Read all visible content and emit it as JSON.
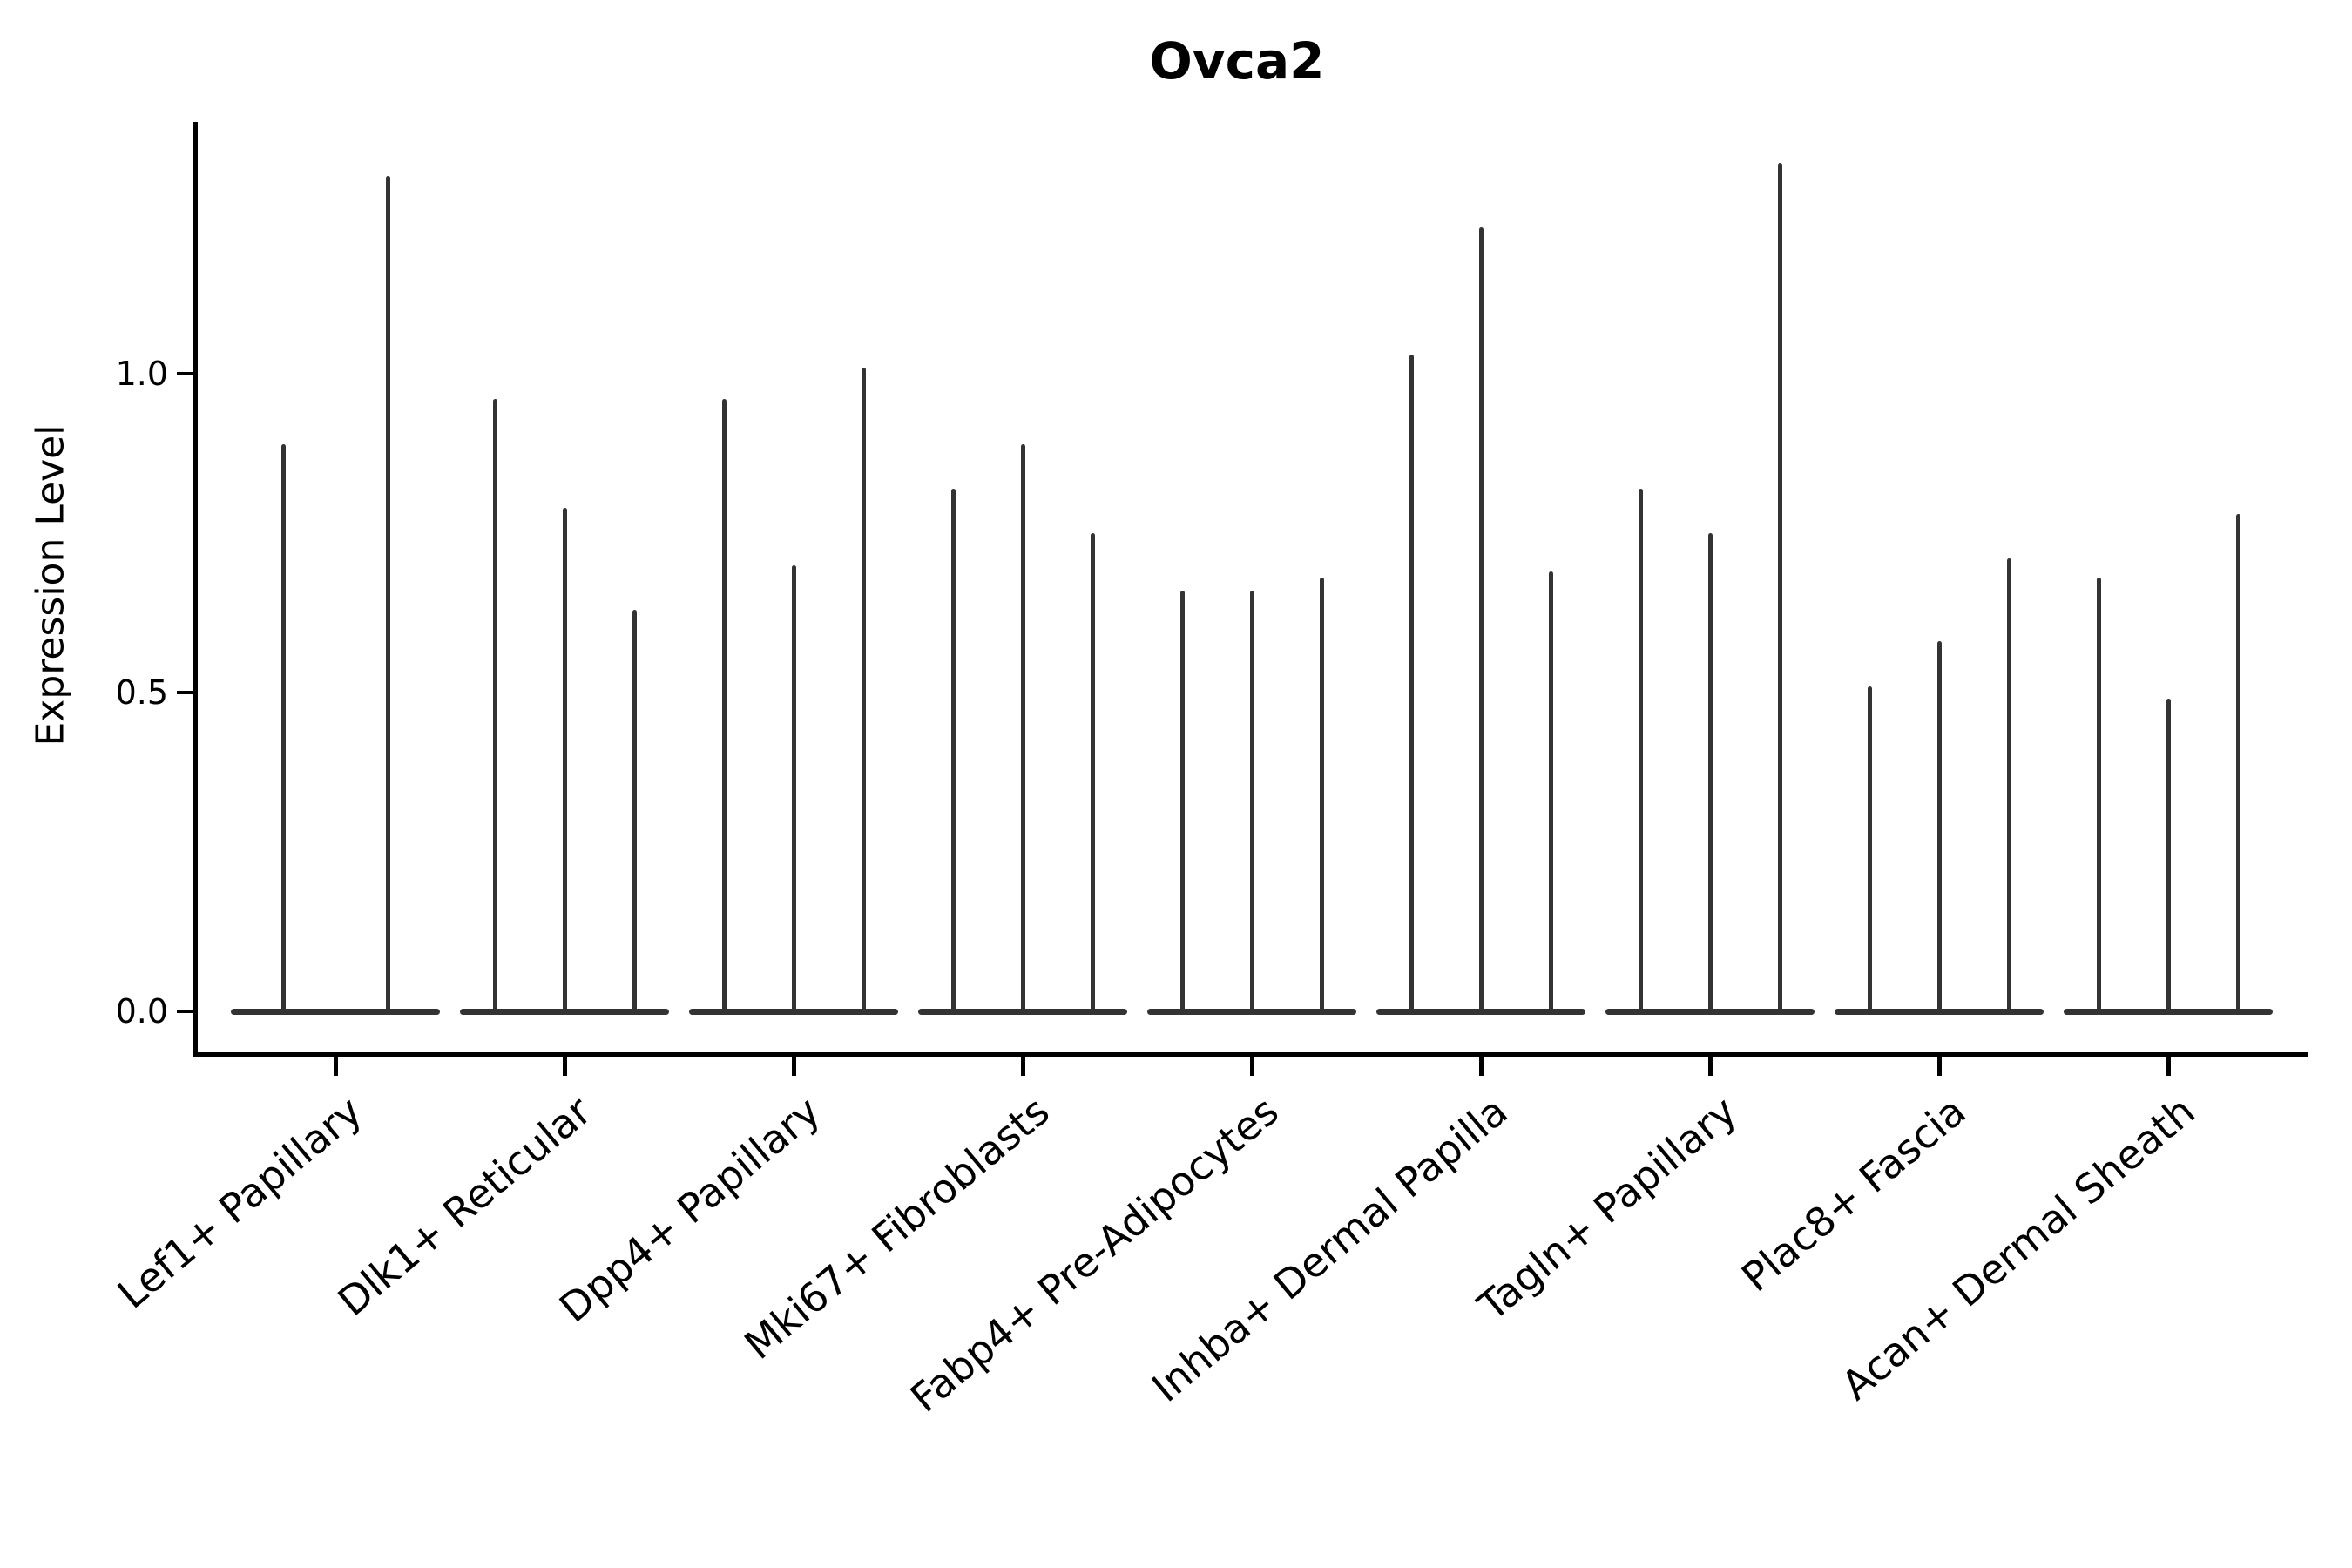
{
  "chart_data": {
    "type": "violin",
    "title": "Ovca2",
    "ylabel": "Expression Level",
    "xlabel": "",
    "ylim": [
      -0.07,
      1.39
    ],
    "grid": false,
    "legend": "none",
    "xtick_rotation_deg": 40,
    "violin_color": "#333333",
    "axis_color": "#000000",
    "yticks": [
      {
        "label": "0.0",
        "value": 0.0
      },
      {
        "label": "0.5",
        "value": 0.5
      },
      {
        "label": "1.0",
        "value": 1.0
      }
    ],
    "note": "Each category shows thin violin plots; expression mass is concentrated at 0 (flat base bar) with a narrow spike reaching the listed maximum expression value.",
    "groups": [
      {
        "category": "Lef1+ Papillary",
        "violin_maxima": [
          0.89,
          1.31
        ]
      },
      {
        "category": "Dlk1+ Reticular",
        "violin_maxima": [
          0.96,
          0.79,
          0.63
        ]
      },
      {
        "category": "Dpp4+ Papillary",
        "violin_maxima": [
          0.96,
          0.7,
          1.01
        ]
      },
      {
        "category": "Mki67+ Fibroblasts",
        "violin_maxima": [
          0.82,
          0.89,
          0.75
        ]
      },
      {
        "category": "Fabp4+ Pre-Adipocytes",
        "violin_maxima": [
          0.66,
          0.66,
          0.68
        ]
      },
      {
        "category": "Inhba+ Dermal Papilla",
        "violin_maxima": [
          1.03,
          1.23,
          0.69
        ]
      },
      {
        "category": "Tagln+ Papillary",
        "violin_maxima": [
          0.82,
          0.75,
          1.33
        ]
      },
      {
        "category": "Plac8+ Fascia",
        "violin_maxima": [
          0.51,
          0.58,
          0.71
        ]
      },
      {
        "category": "Acan+ Dermal Sheath",
        "violin_maxima": [
          0.68,
          0.49,
          0.78
        ]
      }
    ]
  }
}
